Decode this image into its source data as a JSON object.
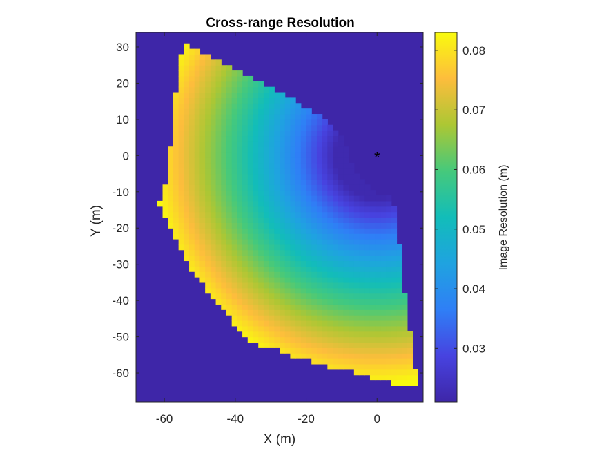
{
  "chart_data": {
    "type": "heatmap",
    "title": "Cross-range Resolution",
    "xlabel": "X (m)",
    "ylabel": "Y (m)",
    "xlim": [
      -68,
      13
    ],
    "ylim": [
      -68,
      34
    ],
    "xticks": [
      -60,
      -40,
      -20,
      0
    ],
    "yticks": [
      -60,
      -50,
      -40,
      -30,
      -20,
      -10,
      0,
      10,
      20,
      30
    ],
    "background_color": "#3e26a8",
    "colorbar": {
      "label": "Image Resolution (m)",
      "range": [
        0.021,
        0.083
      ],
      "ticks": [
        0.03,
        0.04,
        0.05,
        0.06,
        0.07,
        0.08
      ],
      "colormap": "parula"
    },
    "radar_position": {
      "x": 0,
      "y": 0,
      "marker": "*"
    },
    "region_polygon": [
      [
        -54.5,
        31.5
      ],
      [
        -50,
        29
      ],
      [
        -44,
        26
      ],
      [
        -38,
        23
      ],
      [
        -33,
        20
      ],
      [
        -28,
        18
      ],
      [
        -23,
        15
      ],
      [
        -18,
        12
      ],
      [
        -14,
        10
      ],
      [
        -11,
        7
      ],
      [
        -9,
        4
      ],
      [
        -8,
        0
      ],
      [
        -6,
        -4
      ],
      [
        -3,
        -8
      ],
      [
        0,
        -11
      ],
      [
        4,
        -11
      ],
      [
        5,
        -15
      ],
      [
        6,
        -22
      ],
      [
        7,
        -32
      ],
      [
        8,
        -40
      ],
      [
        9,
        -47
      ],
      [
        10,
        -54
      ],
      [
        11,
        -60
      ],
      [
        12,
        -62
      ],
      [
        12,
        -63
      ],
      [
        5,
        -63
      ],
      [
        0,
        -62
      ],
      [
        -5,
        -60
      ],
      [
        -10,
        -59
      ],
      [
        -15,
        -58
      ],
      [
        -20,
        -56
      ],
      [
        -25,
        -55
      ],
      [
        -30,
        -53
      ],
      [
        -35,
        -52
      ],
      [
        -38,
        -50
      ],
      [
        -40,
        -47
      ],
      [
        -43,
        -43
      ],
      [
        -46,
        -40
      ],
      [
        -49,
        -36
      ],
      [
        -52,
        -32
      ],
      [
        -54,
        -28
      ],
      [
        -57,
        -23
      ],
      [
        -59,
        -19
      ],
      [
        -61.5,
        -13.5
      ],
      [
        -60,
        -10
      ],
      [
        -59,
        -5
      ],
      [
        -58,
        5
      ],
      [
        -57,
        15
      ],
      [
        -56,
        25
      ]
    ],
    "value_model": {
      "description_free": true,
      "min_value": 0.022,
      "max_value": 0.083,
      "inner_radius": 12,
      "outer_radius": 63
    }
  }
}
